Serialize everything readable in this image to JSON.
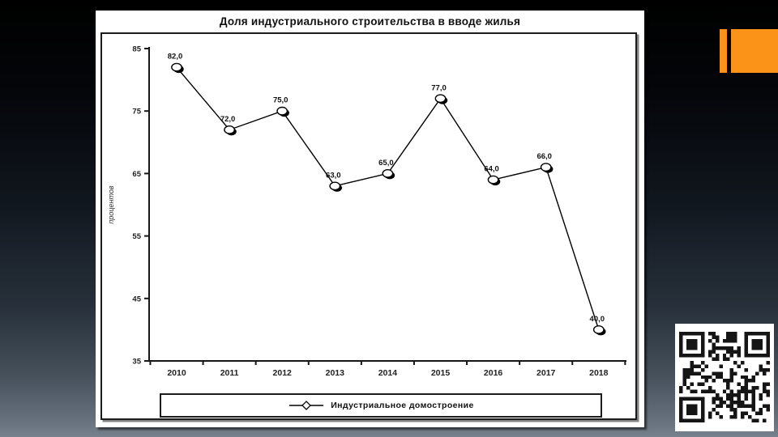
{
  "slide": {
    "accent_color": "#fb9318",
    "background_top_color": "#000000",
    "background_bottom_color": "#76818d",
    "panel_color": "#ffffff"
  },
  "chart_data": {
    "type": "line",
    "title": "Доля индустриального строительства в вводе жилья",
    "xlabel": "",
    "ylabel": "процентов",
    "categories": [
      "2010",
      "2011",
      "2012",
      "2013",
      "2014",
      "2015",
      "2016",
      "2017",
      "2018"
    ],
    "series": [
      {
        "name": "Индустриальное домостроение",
        "values": [
          82.0,
          72.0,
          75.0,
          63.0,
          65.0,
          77.0,
          64.0,
          66.0,
          40.0
        ],
        "data_labels": [
          "82,0",
          "72,0",
          "75,0",
          "63,0",
          "65,0",
          "77,0",
          "64,0",
          "66,0",
          "40,0"
        ],
        "line_color": "#000000",
        "marker": "open-circle-with-shadow"
      }
    ],
    "ylim": [
      35,
      85
    ],
    "yticks": [
      35,
      45,
      55,
      65,
      75,
      85
    ],
    "grid": false,
    "legend_position": "bottom"
  }
}
